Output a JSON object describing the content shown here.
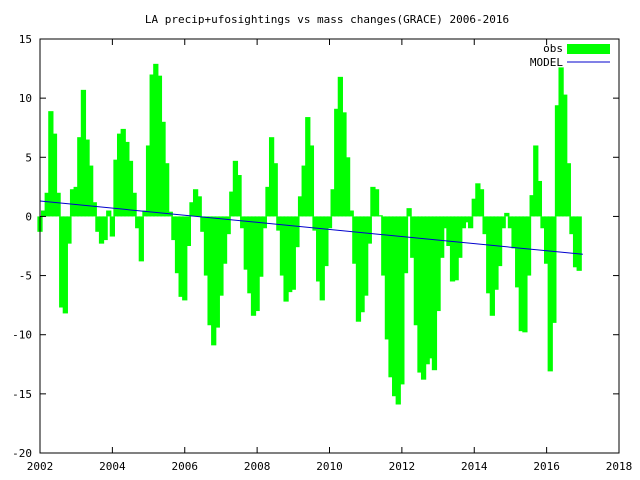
{
  "chart_data": {
    "type": "bar",
    "title": "LA precip+ufosightings vs mass changes(GRACE) 2006-2016",
    "xlabel": "",
    "ylabel": "",
    "xlim": [
      2002,
      2018
    ],
    "ylim": [
      -20,
      15
    ],
    "x_ticks": [
      2002,
      2004,
      2006,
      2008,
      2010,
      2012,
      2014,
      2016,
      2018
    ],
    "y_ticks": [
      -20,
      -15,
      -10,
      -5,
      0,
      5,
      10,
      15
    ],
    "legend_position": "top-right",
    "grid": false,
    "colors": {
      "obs": "#00ff00",
      "model": "#0000cc"
    },
    "series": [
      {
        "name": "obs",
        "type": "bar",
        "x": [
          2002.0,
          2002.1,
          2002.2,
          2002.3,
          2002.4,
          2002.5,
          2002.6,
          2002.7,
          2002.8,
          2002.9,
          2003.0,
          2003.1,
          2003.2,
          2003.3,
          2003.4,
          2003.5,
          2003.6,
          2003.7,
          2003.8,
          2003.9,
          2004.0,
          2004.1,
          2004.2,
          2004.3,
          2004.4,
          2004.5,
          2004.6,
          2004.7,
          2004.8,
          2004.9,
          2005.0,
          2005.1,
          2005.2,
          2005.3,
          2005.4,
          2005.5,
          2005.6,
          2005.7,
          2005.8,
          2005.9,
          2006.0,
          2006.1,
          2006.2,
          2006.3,
          2006.4,
          2006.5,
          2006.6,
          2006.7,
          2006.8,
          2006.9,
          2007.0,
          2007.1,
          2007.2,
          2007.3,
          2007.4,
          2007.5,
          2007.6,
          2007.7,
          2007.8,
          2007.9,
          2008.0,
          2008.1,
          2008.2,
          2008.3,
          2008.4,
          2008.5,
          2008.6,
          2008.7,
          2008.8,
          2008.9,
          2009.0,
          2009.1,
          2009.2,
          2009.3,
          2009.4,
          2009.5,
          2009.6,
          2009.7,
          2009.8,
          2009.9,
          2010.0,
          2010.1,
          2010.2,
          2010.3,
          2010.4,
          2010.5,
          2010.6,
          2010.7,
          2010.8,
          2010.9,
          2011.0,
          2011.1,
          2011.2,
          2011.3,
          2011.4,
          2011.5,
          2011.6,
          2011.7,
          2011.8,
          2011.9,
          2012.0,
          2012.1,
          2012.2,
          2012.3,
          2012.4,
          2012.5,
          2012.6,
          2012.7,
          2012.8,
          2012.9,
          2013.0,
          2013.1,
          2013.2,
          2013.3,
          2013.4,
          2013.5,
          2013.6,
          2013.7,
          2013.8,
          2013.9,
          2014.0,
          2014.1,
          2014.2,
          2014.3,
          2014.4,
          2014.5,
          2014.6,
          2014.7,
          2014.8,
          2014.9,
          2015.0,
          2015.1,
          2015.2,
          2015.3,
          2015.4,
          2015.5,
          2015.6,
          2015.7,
          2015.8,
          2015.9,
          2016.0,
          2016.1,
          2016.2,
          2016.3,
          2016.4,
          2016.5,
          2016.6,
          2016.7,
          2016.8,
          2016.9
        ],
        "values": [
          -1.3,
          0.5,
          2.0,
          8.9,
          7.0,
          2.0,
          -7.7,
          -8.2,
          -2.3,
          2.3,
          2.5,
          6.7,
          10.7,
          6.5,
          4.3,
          1.2,
          -1.3,
          -2.3,
          -2.0,
          0.5,
          -1.7,
          4.8,
          7.0,
          7.4,
          6.3,
          4.7,
          2.0,
          -1.0,
          -3.8,
          0.5,
          6.0,
          12.0,
          12.9,
          11.9,
          8.0,
          4.5,
          0.4,
          -2.0,
          -4.8,
          -6.8,
          -7.1,
          -2.5,
          1.2,
          2.3,
          1.7,
          -1.3,
          -5.0,
          -9.2,
          -10.9,
          -9.4,
          -6.7,
          -4.0,
          -1.5,
          2.1,
          4.7,
          3.5,
          -1.0,
          -4.5,
          -6.5,
          -8.4,
          -8.0,
          -5.1,
          -1.0,
          2.5,
          6.7,
          4.5,
          -1.2,
          -5.0,
          -7.2,
          -6.4,
          -6.2,
          -2.6,
          1.7,
          4.3,
          8.4,
          6.0,
          -1.2,
          -5.5,
          -7.1,
          -4.2,
          -1.0,
          2.3,
          9.1,
          11.8,
          8.8,
          5.0,
          0.5,
          -4.0,
          -8.9,
          -8.1,
          -6.7,
          -2.3,
          2.5,
          2.3,
          0.1,
          -5.0,
          -10.4,
          -13.6,
          -15.2,
          -15.9,
          -14.2,
          -4.8,
          0.7,
          -3.5,
          -9.2,
          -13.2,
          -13.8,
          -12.5,
          -12.0,
          -13.0,
          -8.0,
          -3.5,
          -1.0,
          -2.5,
          -5.5,
          -5.4,
          -3.5,
          -1.0,
          -0.5,
          -1.0,
          1.5,
          2.8,
          2.3,
          -1.5,
          -6.5,
          -8.4,
          -6.2,
          -4.2,
          -1.0,
          0.3,
          -1.0,
          -2.7,
          -6.0,
          -9.7,
          -9.8,
          -5.0,
          1.8,
          6.0,
          3.0,
          -1.0,
          -4.0,
          -13.1,
          -9.0,
          9.4,
          12.6,
          10.3,
          4.5,
          -1.5,
          -4.3,
          -4.6
        ]
      },
      {
        "name": "MODEL",
        "type": "line",
        "x": [
          2002.0,
          2017.0
        ],
        "values": [
          1.3,
          -3.2
        ]
      }
    ]
  }
}
